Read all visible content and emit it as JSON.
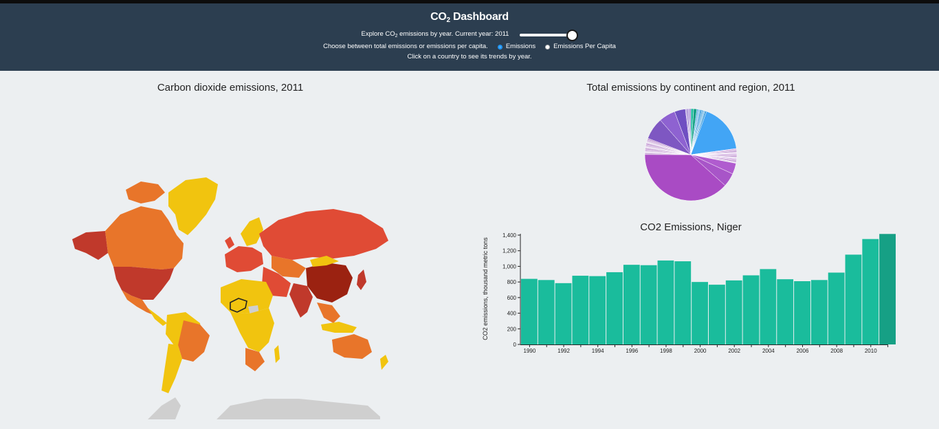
{
  "header": {
    "title_main": "CO",
    "title_sub": "2",
    "title_rest": " Dashboard",
    "explore_pre": "Explore CO",
    "explore_sub": "2",
    "explore_post": " emissions by year. Current year: 2011",
    "year_slider_value": 2011,
    "choose_text": "Choose between total emissions or emissions per capita.",
    "radio_emissions": "Emissions",
    "radio_per_capita": "Emissions Per Capita",
    "selected_mode": "Emissions",
    "click_text": "Click on a country to see its trends by year."
  },
  "map": {
    "title": "Carbon dioxide emissions, 2011",
    "selected_country": "Niger"
  },
  "pie": {
    "title": "Total emissions by continent and region, 2011"
  },
  "colors": {
    "header_bg": "#2c3e50",
    "page_bg": "#eceff1",
    "bar": "#1abc9c",
    "bar_highlight": "#16a085",
    "map_dark": "#9b2211",
    "map_red": "#e04b35",
    "map_orange": "#e8752a",
    "map_yellow": "#f1c40f",
    "map_nodata": "#cfcfcf"
  },
  "chart_data": {
    "type": "bar",
    "title": "CO2 Emissions, Niger",
    "ylabel": "CO2 emissions, thousand metric tons",
    "xlabel": "",
    "x": [
      1990,
      1991,
      1992,
      1993,
      1994,
      1995,
      1996,
      1997,
      1998,
      1999,
      2000,
      2001,
      2002,
      2003,
      2004,
      2005,
      2006,
      2007,
      2008,
      2009,
      2010,
      2011
    ],
    "values": [
      840,
      825,
      785,
      880,
      875,
      925,
      1020,
      1015,
      1075,
      1065,
      800,
      765,
      820,
      885,
      965,
      835,
      810,
      825,
      920,
      1150,
      1350,
      1415
    ],
    "x_tick_labels": [
      "1990",
      "1992",
      "1994",
      "1996",
      "1998",
      "2000",
      "2002",
      "2004",
      "2006",
      "2008",
      "2010"
    ],
    "y_ticks": [
      "0",
      "200",
      "400",
      "600",
      "800",
      "1,000",
      "1,200",
      "1,400"
    ],
    "ylim": [
      0,
      1400
    ],
    "highlighted_year": 2011
  }
}
